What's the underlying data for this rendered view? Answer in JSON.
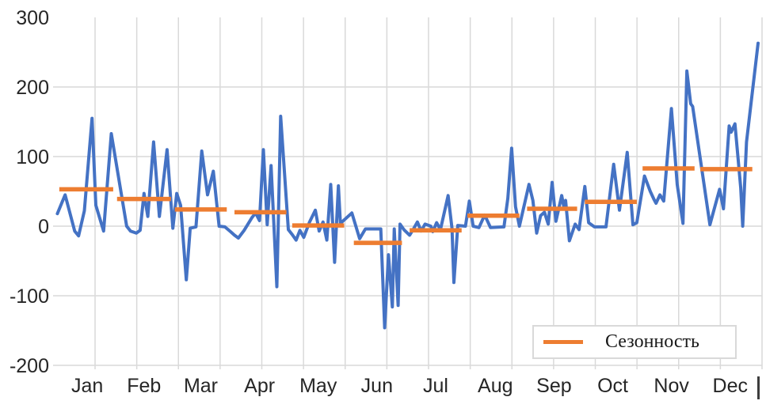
{
  "chart_data": {
    "type": "line",
    "title": "",
    "x_axis": {
      "tick_labels": [
        "Jan",
        "Feb",
        "Mar",
        "Apr",
        "May",
        "Jun",
        "Jul",
        "Aug",
        "Sep",
        "Oct",
        "Nov",
        "Dec"
      ],
      "month_start_days": [
        1,
        32,
        60,
        91,
        121,
        152,
        182,
        213,
        244,
        274,
        305,
        335
      ],
      "range_days": [
        0,
        366
      ],
      "grid": true
    },
    "y_axis": {
      "tick_labels": [
        "300",
        "200",
        "100",
        "0",
        "-100",
        "-200"
      ],
      "tick_values": [
        300,
        200,
        100,
        0,
        -100,
        -200
      ],
      "ylim": [
        -200,
        300
      ],
      "grid": true
    },
    "series": [
      {
        "id": "values",
        "label": "",
        "color": "#4472C4",
        "points": [
          [
            1,
            18
          ],
          [
            5,
            45
          ],
          [
            10,
            -7
          ],
          [
            12,
            -14
          ],
          [
            15,
            22
          ],
          [
            19,
            155
          ],
          [
            21,
            30
          ],
          [
            25,
            -7
          ],
          [
            29,
            133
          ],
          [
            37,
            0
          ],
          [
            39,
            -7
          ],
          [
            42,
            -10
          ],
          [
            44,
            -6
          ],
          [
            46,
            47
          ],
          [
            48,
            14
          ],
          [
            51,
            121
          ],
          [
            54,
            14
          ],
          [
            58,
            110
          ],
          [
            61,
            -3
          ],
          [
            63,
            47
          ],
          [
            65,
            30
          ],
          [
            68,
            -77
          ],
          [
            70,
            -3
          ],
          [
            73,
            -1
          ],
          [
            76,
            108
          ],
          [
            79,
            45
          ],
          [
            82,
            79
          ],
          [
            85,
            0
          ],
          [
            88,
            -1
          ],
          [
            91,
            -8
          ],
          [
            93,
            -13
          ],
          [
            95,
            -17
          ],
          [
            98,
            -6
          ],
          [
            102,
            12
          ],
          [
            104,
            19
          ],
          [
            106,
            8
          ],
          [
            108,
            110
          ],
          [
            110,
            2
          ],
          [
            112,
            87
          ],
          [
            115,
            -87
          ],
          [
            117,
            158
          ],
          [
            121,
            -5
          ],
          [
            123,
            -12
          ],
          [
            125,
            -20
          ],
          [
            127,
            -6
          ],
          [
            129,
            -16
          ],
          [
            132,
            6
          ],
          [
            135,
            23
          ],
          [
            137,
            -7
          ],
          [
            139,
            6
          ],
          [
            141,
            -20
          ],
          [
            143,
            60
          ],
          [
            145,
            -52
          ],
          [
            147,
            58
          ],
          [
            148,
            4
          ],
          [
            154,
            19
          ],
          [
            158,
            -18
          ],
          [
            161,
            -4
          ],
          [
            169,
            -4
          ],
          [
            171,
            -146
          ],
          [
            173,
            -41
          ],
          [
            175,
            -116
          ],
          [
            176,
            -4
          ],
          [
            178,
            -114
          ],
          [
            179,
            3
          ],
          [
            181,
            -5
          ],
          [
            184,
            -13
          ],
          [
            186,
            -4
          ],
          [
            188,
            6
          ],
          [
            190,
            -7
          ],
          [
            192,
            3
          ],
          [
            195,
            0
          ],
          [
            196,
            -8
          ],
          [
            198,
            5
          ],
          [
            200,
            -5
          ],
          [
            204,
            44
          ],
          [
            206,
            -3
          ],
          [
            207,
            -81
          ],
          [
            209,
            1
          ],
          [
            213,
            0
          ],
          [
            215,
            36
          ],
          [
            217,
            0
          ],
          [
            220,
            -2
          ],
          [
            223,
            16
          ],
          [
            226,
            -2
          ],
          [
            233,
            -1
          ],
          [
            235,
            40
          ],
          [
            237,
            112
          ],
          [
            239,
            28
          ],
          [
            241,
            0
          ],
          [
            246,
            60
          ],
          [
            248,
            37
          ],
          [
            250,
            -10
          ],
          [
            252,
            15
          ],
          [
            254,
            20
          ],
          [
            256,
            3
          ],
          [
            258,
            63
          ],
          [
            260,
            7
          ],
          [
            263,
            44
          ],
          [
            264,
            29
          ],
          [
            265,
            37
          ],
          [
            267,
            -21
          ],
          [
            270,
            3
          ],
          [
            272,
            -5
          ],
          [
            275,
            57
          ],
          [
            277,
            5
          ],
          [
            280,
            -1
          ],
          [
            286,
            -1
          ],
          [
            290,
            89
          ],
          [
            293,
            23
          ],
          [
            297,
            106
          ],
          [
            300,
            2
          ],
          [
            302,
            5
          ],
          [
            306,
            72
          ],
          [
            309,
            50
          ],
          [
            311,
            38
          ],
          [
            312,
            33
          ],
          [
            314,
            45
          ],
          [
            316,
            36
          ],
          [
            320,
            169
          ],
          [
            323,
            60
          ],
          [
            326,
            4
          ],
          [
            328,
            223
          ],
          [
            330,
            176
          ],
          [
            331,
            172
          ],
          [
            340,
            2
          ],
          [
            345,
            53
          ],
          [
            347,
            25
          ],
          [
            350,
            144
          ],
          [
            351,
            135
          ],
          [
            353,
            147
          ],
          [
            356,
            55
          ],
          [
            357,
            0
          ],
          [
            359,
            121
          ],
          [
            365,
            263
          ]
        ]
      },
      {
        "id": "seasonality",
        "label": "Сезонность",
        "color": "#ED7D31",
        "segments": [
          {
            "month": "Jan",
            "d0": 2,
            "d1": 30,
            "value": 53
          },
          {
            "month": "Feb",
            "d0": 32,
            "d1": 60,
            "value": 39
          },
          {
            "month": "Mar",
            "d0": 62,
            "d1": 89,
            "value": 24
          },
          {
            "month": "Apr",
            "d0": 93,
            "d1": 120,
            "value": 20
          },
          {
            "month": "May",
            "d0": 123,
            "d1": 150,
            "value": 1
          },
          {
            "month": "Jun",
            "d0": 155,
            "d1": 180,
            "value": -24
          },
          {
            "month": "Jul",
            "d0": 184,
            "d1": 211,
            "value": -6
          },
          {
            "month": "Aug",
            "d0": 214,
            "d1": 241,
            "value": 15
          },
          {
            "month": "Sep",
            "d0": 245,
            "d1": 271,
            "value": 25
          },
          {
            "month": "Oct",
            "d0": 275,
            "d1": 302,
            "value": 35
          },
          {
            "month": "Nov",
            "d0": 305,
            "d1": 332,
            "value": 83
          },
          {
            "month": "Dec",
            "d0": 335,
            "d1": 362,
            "value": 82
          }
        ]
      }
    ],
    "legend": {
      "label": "Сезонность",
      "position": "bottom-right",
      "color": "#ED7D31"
    }
  },
  "colors": {
    "line": "#4472C4",
    "seasonality": "#ED7D31",
    "gridline": "#d9d9d9",
    "axis_text": "#262626",
    "background": "#ffffff"
  }
}
